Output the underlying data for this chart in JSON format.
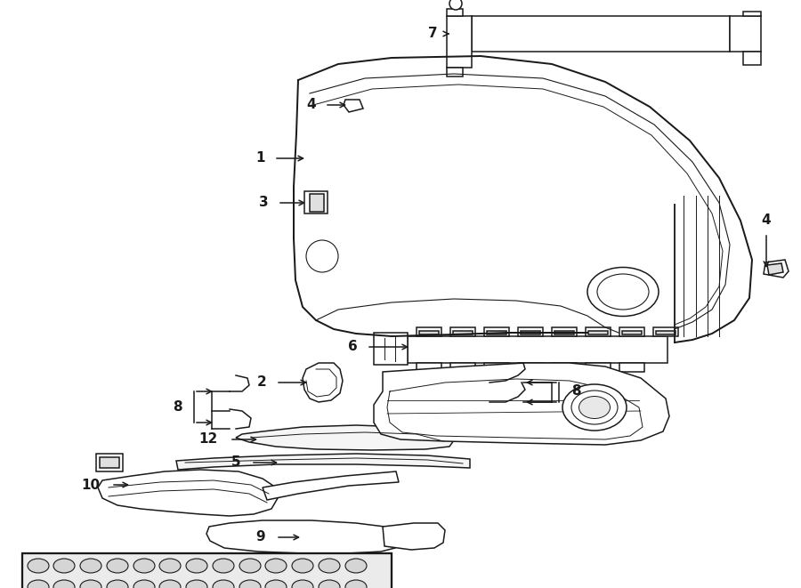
{
  "bg_color": "#ffffff",
  "line_color": "#1a1a1a",
  "figsize": [
    9.0,
    6.61
  ],
  "dpi": 100,
  "lw": 1.1,
  "xlim": [
    0,
    900
  ],
  "ylim": [
    0,
    661
  ]
}
